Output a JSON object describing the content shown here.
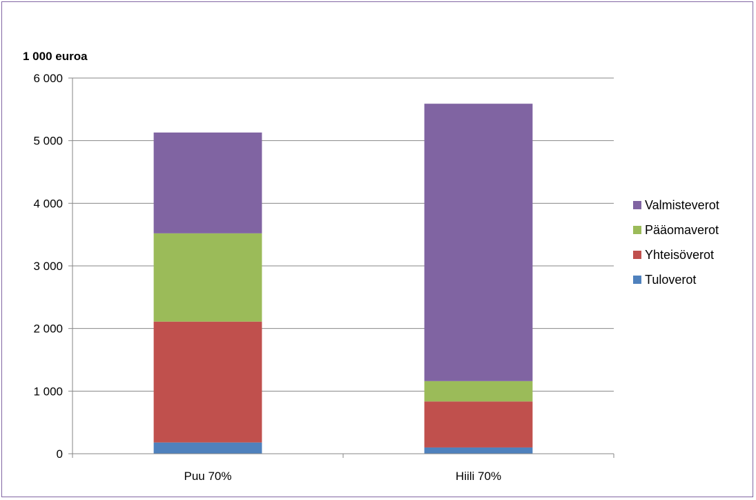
{
  "chart_data": {
    "type": "bar",
    "stacked": true,
    "unit_label": "1 000 euroa",
    "categories": [
      "Puu 70%",
      "Hiili 70%"
    ],
    "series": [
      {
        "name": "Tuloverot",
        "color": "#4f81bd",
        "values": [
          180,
          100
        ]
      },
      {
        "name": "Yhteisöverot",
        "color": "#c0504d",
        "values": [
          1930,
          735
        ]
      },
      {
        "name": "Pääomaverot",
        "color": "#9bbb59",
        "values": [
          1410,
          325
        ]
      },
      {
        "name": "Valmisteverot",
        "color": "#8064a2",
        "values": [
          1610,
          4430
        ]
      }
    ],
    "ylim": [
      0,
      6000
    ],
    "yticks": [
      0,
      1000,
      2000,
      3000,
      4000,
      5000,
      6000
    ],
    "ytick_labels": [
      "0",
      "1 000",
      "2 000",
      "3 000",
      "4 000",
      "5 000",
      "6 000"
    ],
    "grid": true,
    "legend_position": "right",
    "legend_order": [
      "Valmisteverot",
      "Pääomaverot",
      "Yhteisöverot",
      "Tuloverot"
    ]
  }
}
